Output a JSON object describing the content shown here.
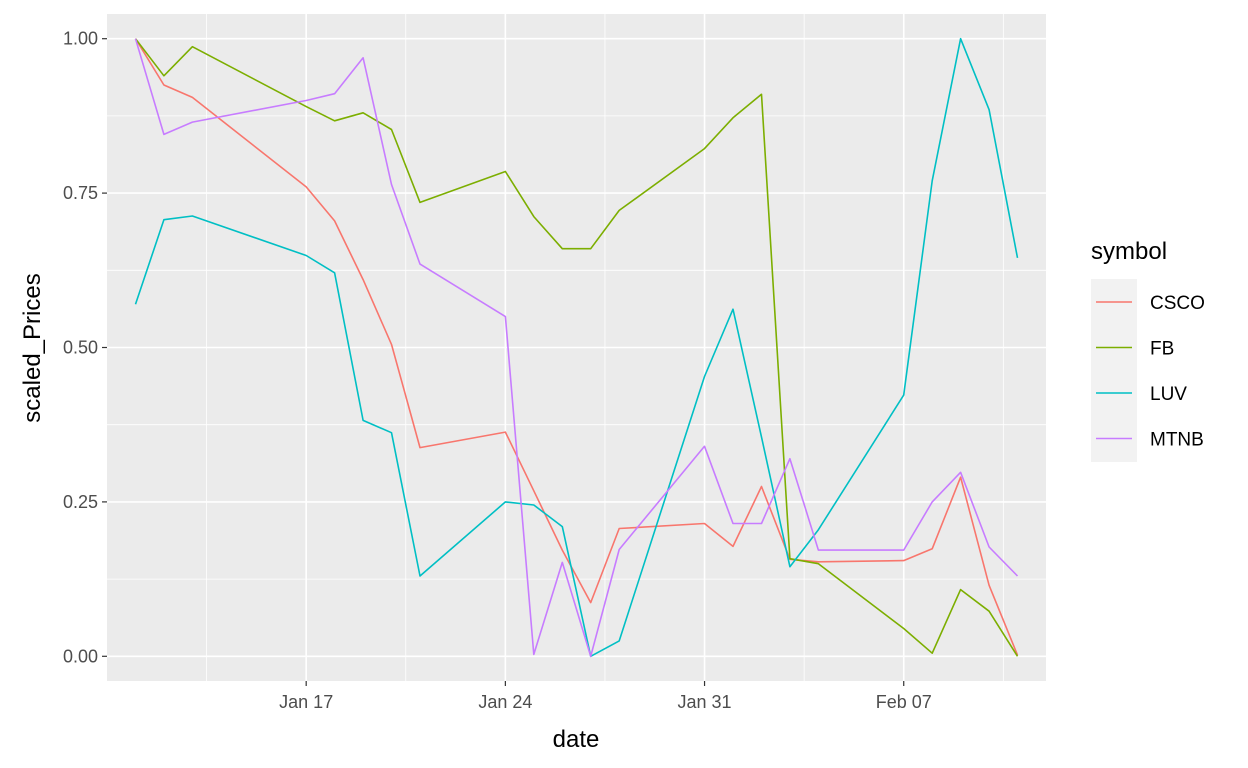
{
  "chart_data": {
    "type": "line",
    "title": "",
    "xlabel": "date",
    "ylabel": "scaled_Prices",
    "ylim": [
      -0.04,
      1.04
    ],
    "xlim": [
      "2019-01-10",
      "2019-02-12"
    ],
    "x_ticks": [
      {
        "date": "2019-01-17",
        "label": "Jan 17"
      },
      {
        "date": "2019-01-24",
        "label": "Jan 24"
      },
      {
        "date": "2019-01-31",
        "label": "Jan 31"
      },
      {
        "date": "2019-02-07",
        "label": "Feb 07"
      }
    ],
    "y_ticks": [
      {
        "value": 0,
        "label": "0.00"
      },
      {
        "value": 0.25,
        "label": "0.25"
      },
      {
        "value": 0.5,
        "label": "0.50"
      },
      {
        "value": 0.75,
        "label": "0.75"
      },
      {
        "value": 1,
        "label": "1.00"
      }
    ],
    "grid": true,
    "legend": {
      "title": "symbol",
      "position": "right"
    },
    "x": [
      "2019-01-11",
      "2019-01-12",
      "2019-01-13",
      "2019-01-17",
      "2019-01-18",
      "2019-01-19",
      "2019-01-20",
      "2019-01-21",
      "2019-01-24",
      "2019-01-25",
      "2019-01-26",
      "2019-01-27",
      "2019-01-28",
      "2019-01-31",
      "2019-02-01",
      "2019-02-02",
      "2019-02-03",
      "2019-02-04",
      "2019-02-07",
      "2019-02-08",
      "2019-02-09",
      "2019-02-10",
      "2019-02-11"
    ],
    "series": [
      {
        "name": "CSCO",
        "color": "#F8766D",
        "values": [
          1.0,
          0.925,
          0.905,
          0.76,
          0.705,
          0.61,
          0.505,
          0.338,
          0.363,
          0.268,
          0.172,
          0.087,
          0.207,
          0.215,
          0.178,
          0.275,
          0.157,
          0.153,
          0.155,
          0.174,
          0.29,
          0.115,
          0.002
        ]
      },
      {
        "name": "FB",
        "color": "#7CAE00",
        "values": [
          1.0,
          0.94,
          0.987,
          0.89,
          0.867,
          0.88,
          0.853,
          0.735,
          0.785,
          0.712,
          0.66,
          0.66,
          0.722,
          0.822,
          0.872,
          0.91,
          0.158,
          0.15,
          0.045,
          0.005,
          0.108,
          0.073,
          0.0
        ]
      },
      {
        "name": "LUV",
        "color": "#00BFC4",
        "values": [
          0.57,
          0.707,
          0.713,
          0.649,
          0.621,
          0.382,
          0.362,
          0.13,
          0.25,
          0.245,
          0.21,
          0.0,
          0.025,
          0.453,
          0.562,
          0.355,
          0.145,
          0.205,
          0.423,
          0.77,
          1.0,
          0.885,
          0.645
        ]
      },
      {
        "name": "MTNB",
        "color": "#C77CFF",
        "values": [
          1.0,
          0.845,
          0.865,
          0.9,
          0.911,
          0.969,
          0.764,
          0.635,
          0.55,
          0.003,
          0.152,
          0.0,
          0.173,
          0.34,
          0.215,
          0.215,
          0.32,
          0.172,
          0.172,
          0.25,
          0.298,
          0.177,
          0.13
        ]
      }
    ]
  }
}
